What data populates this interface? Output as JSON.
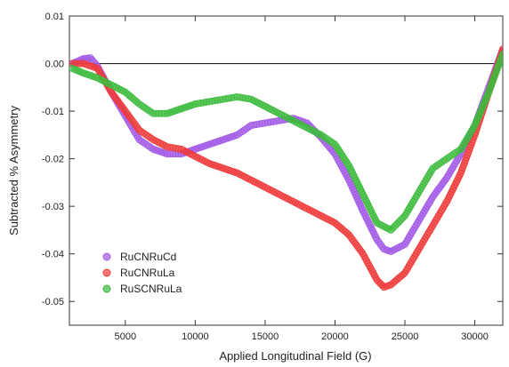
{
  "chart_data": {
    "type": "scatter",
    "title": "",
    "xlabel": "Applied Longitudinal Field (G)",
    "ylabel": "Subtracted % Asymmetry",
    "xlim": [
      1000,
      32000
    ],
    "ylim": [
      -0.055,
      0.01
    ],
    "x_ticks": [
      5000,
      10000,
      15000,
      20000,
      25000,
      30000
    ],
    "x_tick_labels": [
      "5000",
      "10000",
      "15000",
      "20000",
      "25000",
      "30000"
    ],
    "y_ticks": [
      0.01,
      0.0,
      -0.01,
      -0.02,
      -0.03,
      -0.04,
      -0.05
    ],
    "y_tick_labels": [
      "0.01",
      "0.00",
      "-0.01",
      "-0.02",
      "-0.03",
      "-0.04",
      "-0.05"
    ],
    "reference_line_y": 0.0,
    "grid": false,
    "legend_position": "lower-left",
    "series": [
      {
        "name": "RuCNRuCd",
        "color": "#a259e6",
        "x": [
          1200,
          2000,
          2500,
          3000,
          4000,
          5000,
          6000,
          7000,
          8000,
          9000,
          10000,
          11000,
          12000,
          13000,
          14000,
          15000,
          16000,
          17000,
          18000,
          19000,
          20000,
          21000,
          22000,
          23000,
          23500,
          24000,
          25000,
          26000,
          27000,
          28000,
          29000,
          30000,
          31000,
          32000
        ],
        "y": [
          0.0,
          0.001,
          0.0012,
          -0.0005,
          -0.006,
          -0.011,
          -0.016,
          -0.018,
          -0.019,
          -0.019,
          -0.018,
          -0.017,
          -0.016,
          -0.015,
          -0.013,
          -0.0125,
          -0.012,
          -0.0115,
          -0.0125,
          -0.0155,
          -0.019,
          -0.0245,
          -0.031,
          -0.037,
          -0.039,
          -0.0395,
          -0.038,
          -0.033,
          -0.028,
          -0.024,
          -0.019,
          -0.013,
          -0.005,
          0.003
        ]
      },
      {
        "name": "RuCNRuLa",
        "color": "#ef3b3b",
        "x": [
          1200,
          2000,
          3000,
          4000,
          5000,
          6000,
          7000,
          8000,
          9000,
          10000,
          11000,
          12000,
          13000,
          14000,
          15000,
          16000,
          17000,
          18000,
          19000,
          20000,
          21000,
          22000,
          23000,
          23500,
          24000,
          25000,
          26000,
          27000,
          28000,
          29000,
          30000,
          31000,
          32000
        ],
        "y": [
          0.0,
          0.0,
          -0.001,
          -0.006,
          -0.01,
          -0.014,
          -0.016,
          -0.0175,
          -0.018,
          -0.0195,
          -0.021,
          -0.022,
          -0.023,
          -0.0245,
          -0.026,
          -0.0275,
          -0.029,
          -0.0305,
          -0.032,
          -0.0335,
          -0.036,
          -0.04,
          -0.0455,
          -0.047,
          -0.0465,
          -0.044,
          -0.039,
          -0.034,
          -0.029,
          -0.023,
          -0.015,
          -0.006,
          0.003
        ]
      },
      {
        "name": "RuSCNRuLa",
        "color": "#3dbb3d",
        "x": [
          1200,
          2000,
          3000,
          4000,
          5000,
          6000,
          7000,
          8000,
          9000,
          10000,
          11000,
          12000,
          13000,
          14000,
          15000,
          16000,
          17000,
          18000,
          19000,
          20000,
          21000,
          22000,
          23000,
          24000,
          25000,
          26000,
          27000,
          28000,
          29000,
          30000,
          31000,
          32000
        ],
        "y": [
          -0.001,
          -0.002,
          -0.003,
          -0.0045,
          -0.006,
          -0.0085,
          -0.0105,
          -0.0105,
          -0.0095,
          -0.0085,
          -0.008,
          -0.0075,
          -0.007,
          -0.0075,
          -0.009,
          -0.0105,
          -0.012,
          -0.0135,
          -0.015,
          -0.017,
          -0.0215,
          -0.0275,
          -0.0335,
          -0.035,
          -0.032,
          -0.027,
          -0.022,
          -0.02,
          -0.018,
          -0.013,
          -0.006,
          0.002
        ]
      }
    ]
  }
}
